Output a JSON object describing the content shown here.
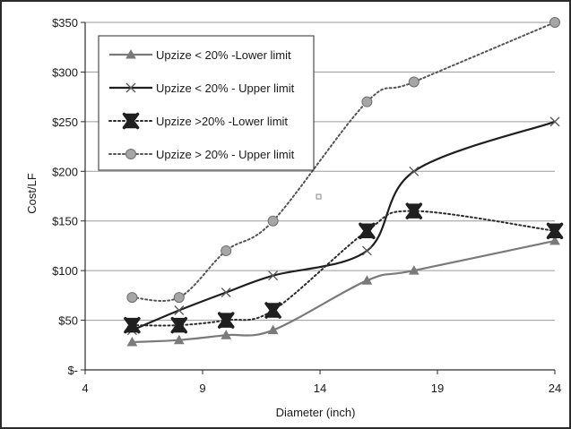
{
  "chart_data": {
    "type": "line",
    "title": "",
    "xlabel": "Diameter (inch)",
    "ylabel": "Cost/LF",
    "xlim": [
      4,
      24
    ],
    "ylim": [
      0,
      350
    ],
    "x_ticks": [
      4,
      9,
      14,
      19,
      24
    ],
    "y_ticks": [
      {
        "value": 0,
        "label": "$-"
      },
      {
        "value": 50,
        "label": "$50"
      },
      {
        "value": 100,
        "label": "$100"
      },
      {
        "value": 150,
        "label": "$150"
      },
      {
        "value": 200,
        "label": "$200"
      },
      {
        "value": 250,
        "label": "$250"
      },
      {
        "value": 300,
        "label": "$300"
      },
      {
        "value": 350,
        "label": "$350"
      }
    ],
    "grid": "horizontal",
    "legend_position": "top-left",
    "series": [
      {
        "name": "Upzize < 20% -Lower limit",
        "color": "#7a7a7a",
        "line_style": "solid",
        "marker": "triangle",
        "x": [
          6,
          8,
          10,
          12,
          16,
          18,
          24
        ],
        "y": [
          28,
          30,
          35,
          40,
          90,
          100,
          130
        ]
      },
      {
        "name": "Upzize < 20% - Upper limit",
        "color": "#1f1f1f",
        "line_style": "solid",
        "marker": "x",
        "x": [
          6,
          8,
          10,
          12,
          16,
          18,
          24
        ],
        "y": [
          40,
          60,
          78,
          95,
          120,
          200,
          250
        ]
      },
      {
        "name": "Upzize >20% -Lower limit",
        "color": "#2a2a2a",
        "line_style": "dotted",
        "marker": "bowtie",
        "x": [
          6,
          8,
          10,
          12,
          16,
          18,
          24
        ],
        "y": [
          45,
          45,
          50,
          60,
          140,
          160,
          140
        ]
      },
      {
        "name": "Upzize > 20% - Upper limit",
        "color": "#555555",
        "line_style": "dotted",
        "marker": "circle",
        "x": [
          6,
          8,
          10,
          12,
          16,
          18,
          24
        ],
        "y": [
          73,
          73,
          120,
          150,
          270,
          290,
          350
        ]
      }
    ],
    "colors": {
      "frame": "#2b2b2b",
      "gridline": "#9a9a9a",
      "circle_fill": "#a6a6a6"
    }
  }
}
